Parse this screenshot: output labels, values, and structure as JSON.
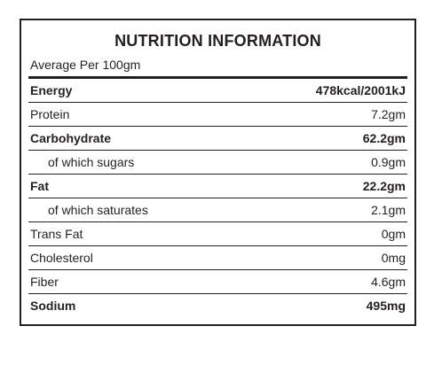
{
  "panel": {
    "title": "NUTRITION INFORMATION",
    "subtitle": "Average Per 100gm"
  },
  "rows": [
    {
      "label": "Energy",
      "value": "478kcal/2001kJ",
      "bold": true,
      "indent": false
    },
    {
      "label": "Protein",
      "value": "7.2gm",
      "bold": false,
      "indent": false
    },
    {
      "label": "Carbohydrate",
      "value": "62.2gm",
      "bold": true,
      "indent": false
    },
    {
      "label": "of which sugars",
      "value": "0.9gm",
      "bold": false,
      "indent": true
    },
    {
      "label": "Fat",
      "value": "22.2gm",
      "bold": true,
      "indent": false
    },
    {
      "label": "of which saturates",
      "value": "2.1gm",
      "bold": false,
      "indent": true
    },
    {
      "label": "Trans Fat",
      "value": "0gm",
      "bold": false,
      "indent": false
    },
    {
      "label": "Cholesterol",
      "value": "0mg",
      "bold": false,
      "indent": false
    },
    {
      "label": "Fiber",
      "value": "4.6gm",
      "bold": false,
      "indent": false
    },
    {
      "label": "Sodium",
      "value": "495mg",
      "bold": true,
      "indent": false
    }
  ]
}
